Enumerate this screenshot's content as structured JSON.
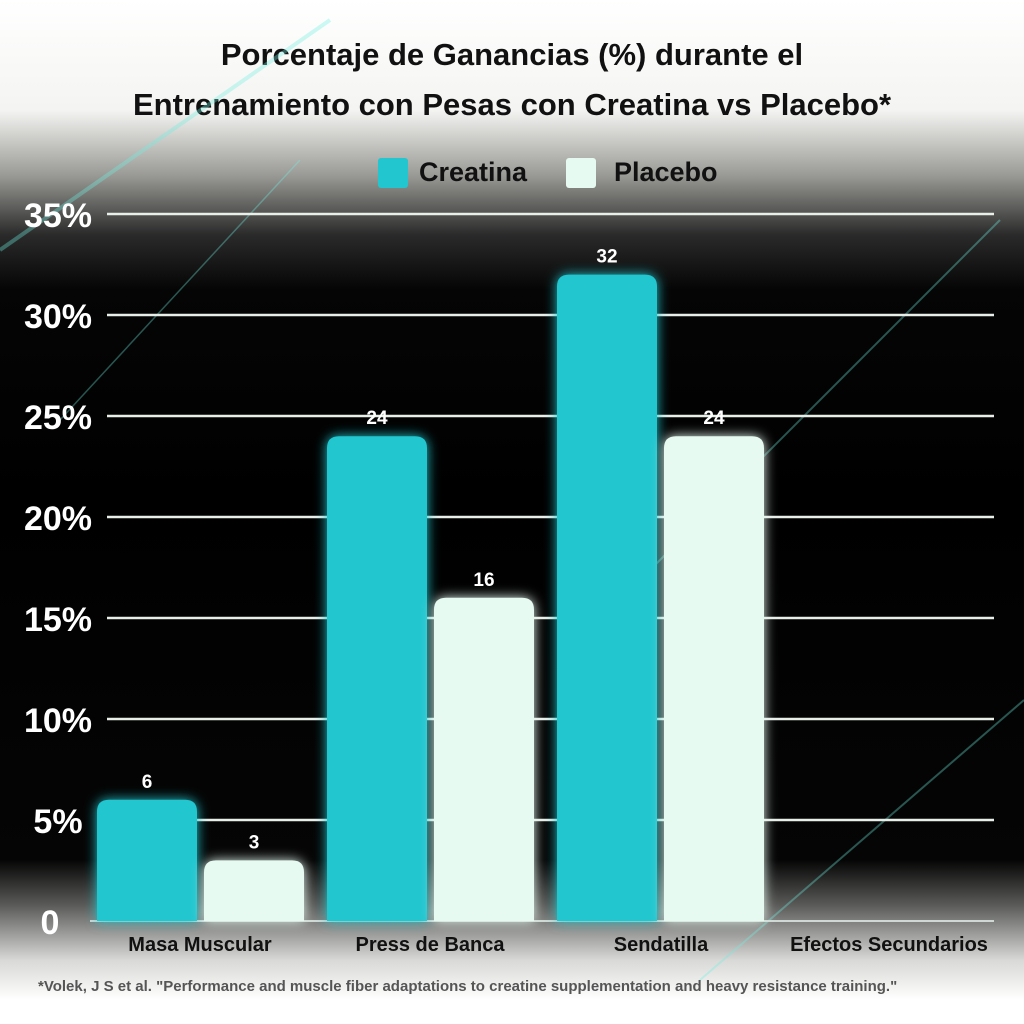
{
  "chart_data": {
    "type": "bar",
    "title_line1": "Porcentaje de Ganancias (%) durante el",
    "title_line2": "Entrenamiento con Pesas con Creatina vs Placebo*",
    "categories": [
      "Masa Muscular",
      "Press de Banca",
      "Sendatilla",
      "Efectos Secundarios"
    ],
    "series": [
      {
        "name": "Creatina",
        "color": "#22c6cf",
        "values": [
          6,
          24,
          32,
          null
        ]
      },
      {
        "name": "Placebo",
        "color": "#e6faf2",
        "values": [
          3,
          16,
          24,
          null
        ]
      }
    ],
    "ylim": [
      0,
      35
    ],
    "yticks": [
      0,
      5,
      10,
      15,
      20,
      25,
      30,
      35
    ],
    "ytick_labels": [
      "0",
      "5%",
      "10%",
      "15%",
      "20%",
      "25%",
      "30%",
      "35%"
    ],
    "legend": "top-center",
    "grid": true,
    "footnote": "*Volek, J S et al. \"Performance and muscle fiber adaptations to creatine supplementation and heavy resistance training.\""
  }
}
